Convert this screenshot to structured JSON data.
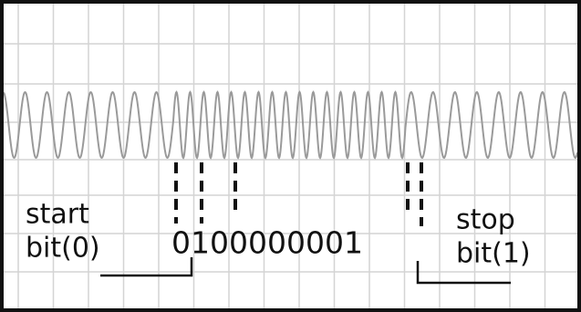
{
  "labels": {
    "start_top": "start",
    "start_bottom": "bit(0)",
    "bits": "0100000001",
    "stop_top": "stop",
    "stop_bottom": "bit(1)"
  }
}
